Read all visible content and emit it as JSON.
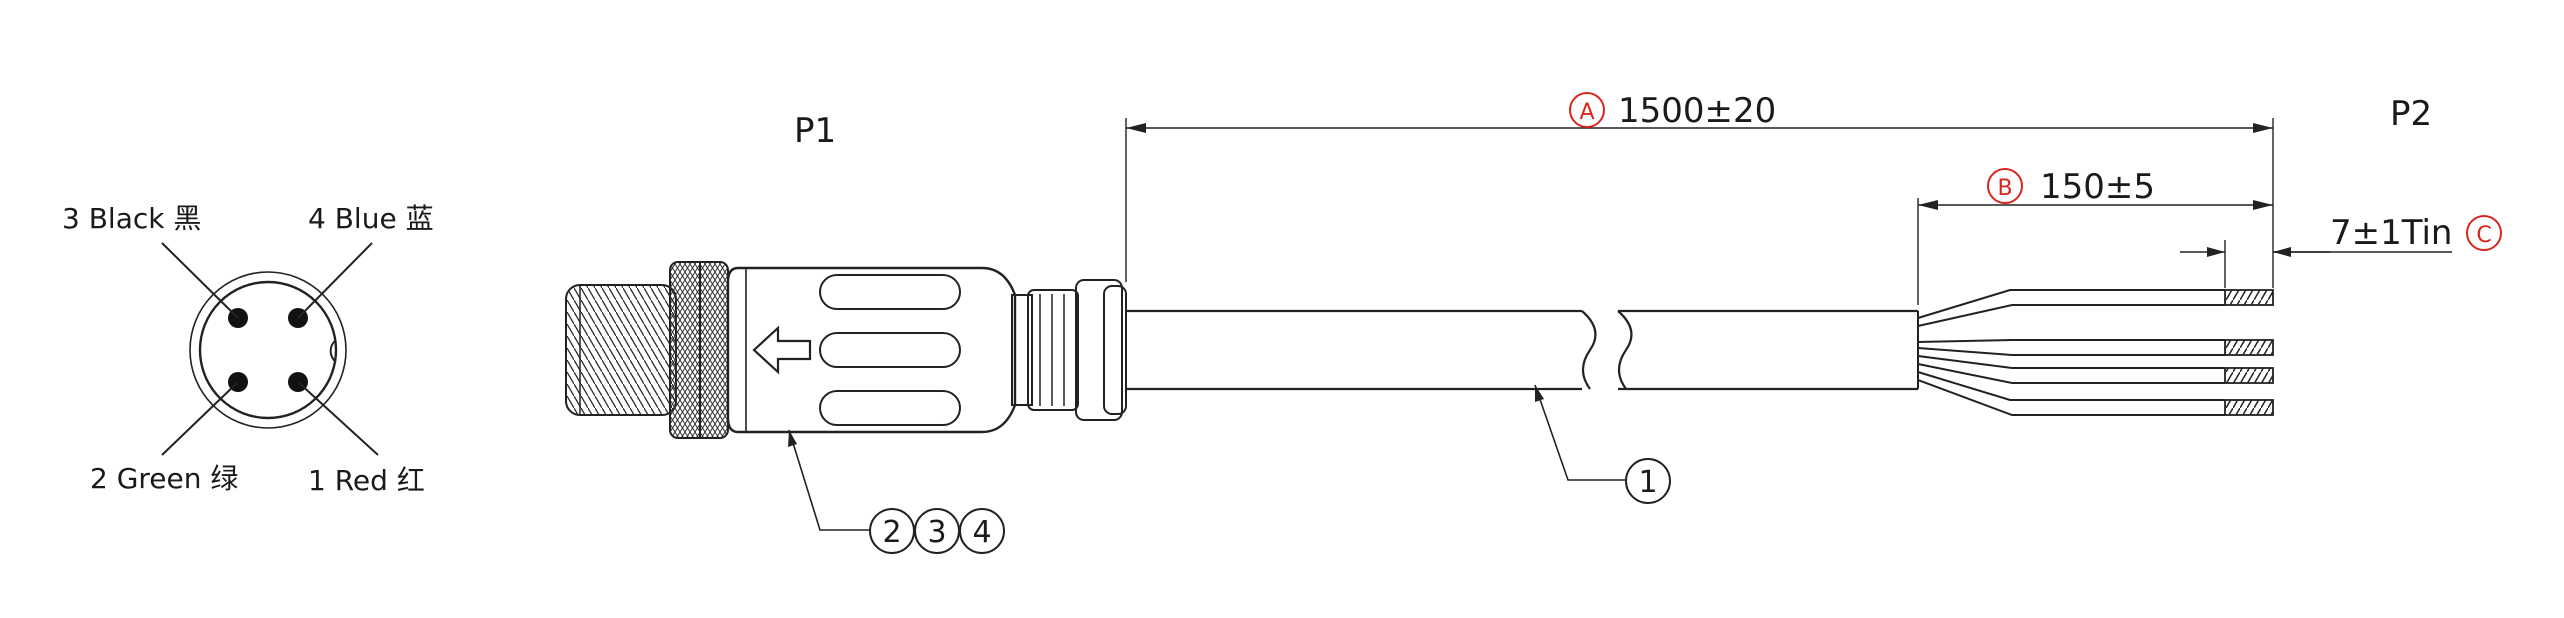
{
  "labels": {
    "p1": "P1",
    "p2": "P2"
  },
  "pinout": [
    {
      "id": "pin3",
      "label": "3 Black 黑"
    },
    {
      "id": "pin4",
      "label": "4 Blue 蓝"
    },
    {
      "id": "pin2",
      "label": "2 Green 绿"
    },
    {
      "id": "pin1",
      "label": "1 Red 红"
    }
  ],
  "dimensions": {
    "a": {
      "letter": "A",
      "value": "1500±20"
    },
    "b": {
      "letter": "B",
      "value": "150±5"
    },
    "c": {
      "letter": "C",
      "value": "7±1Tin"
    }
  },
  "callouts": {
    "cable": "1",
    "connector": [
      "2",
      "3",
      "4"
    ]
  },
  "colors": {
    "line": "#222222",
    "marker": "#d7261e"
  }
}
